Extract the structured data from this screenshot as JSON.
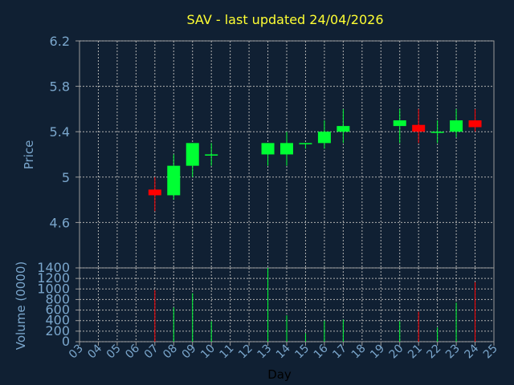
{
  "colors": {
    "background": "#102033",
    "text": "#7aa6cc",
    "title": "#ffff33",
    "up": "#00ff33",
    "down": "#ff0000",
    "grid": "#b0b0b0",
    "axis": "#9a9a9a",
    "xlabel": "#000000"
  },
  "chart_data": [
    {
      "type": "candlestick",
      "title": "SAV - last updated 24/04/2026",
      "ylabel": "Price",
      "ylim": [
        4.2,
        6.2
      ],
      "yticks": [
        "4.6",
        "5",
        "5.4",
        "5.8",
        "6.2"
      ],
      "candles": [
        {
          "day": "07",
          "open": 4.89,
          "close": 4.84,
          "high": 5.0,
          "low": 4.7
        },
        {
          "day": "08",
          "open": 4.84,
          "close": 5.1,
          "high": 5.2,
          "low": 4.8
        },
        {
          "day": "09",
          "open": 5.1,
          "close": 5.3,
          "high": 5.3,
          "low": 5.0
        },
        {
          "day": "10",
          "open": 5.19,
          "close": 5.2,
          "high": 5.3,
          "low": 5.1
        },
        {
          "day": "13",
          "open": 5.2,
          "close": 5.3,
          "high": 5.3,
          "low": 5.1
        },
        {
          "day": "14",
          "open": 5.2,
          "close": 5.3,
          "high": 5.4,
          "low": 5.1
        },
        {
          "day": "15",
          "open": 5.29,
          "close": 5.3,
          "high": 5.3,
          "low": 5.25
        },
        {
          "day": "16",
          "open": 5.3,
          "close": 5.4,
          "high": 5.5,
          "low": 5.25
        },
        {
          "day": "17",
          "open": 5.4,
          "close": 5.45,
          "high": 5.6,
          "low": 5.3
        },
        {
          "day": "20",
          "open": 5.45,
          "close": 5.5,
          "high": 5.6,
          "low": 5.3
        },
        {
          "day": "21",
          "open": 5.46,
          "close": 5.4,
          "high": 5.6,
          "low": 5.3
        },
        {
          "day": "22",
          "open": 5.39,
          "close": 5.4,
          "high": 5.5,
          "low": 5.3
        },
        {
          "day": "23",
          "open": 5.4,
          "close": 5.5,
          "high": 5.6,
          "low": 5.35
        },
        {
          "day": "24",
          "open": 5.5,
          "close": 5.44,
          "high": 5.6,
          "low": 5.4
        }
      ]
    },
    {
      "type": "bar",
      "ylabel": "Volume (0000)",
      "xlabel": "Day",
      "ylim": [
        0,
        1400
      ],
      "yticks": [
        "0",
        "200",
        "400",
        "600",
        "800",
        "1000",
        "1200",
        "1400"
      ],
      "categories": [
        "03",
        "04",
        "05",
        "06",
        "07",
        "08",
        "09",
        "10",
        "11",
        "12",
        "13",
        "14",
        "15",
        "16",
        "17",
        "18",
        "19",
        "20",
        "21",
        "22",
        "23",
        "24",
        "25"
      ],
      "volumes": [
        {
          "day": "07",
          "value": 980,
          "direction": "down"
        },
        {
          "day": "08",
          "value": 650,
          "direction": "up"
        },
        {
          "day": "09",
          "value": 920,
          "direction": "up"
        },
        {
          "day": "10",
          "value": 390,
          "direction": "up"
        },
        {
          "day": "13",
          "value": 1400,
          "direction": "up"
        },
        {
          "day": "14",
          "value": 500,
          "direction": "up"
        },
        {
          "day": "15",
          "value": 160,
          "direction": "up"
        },
        {
          "day": "16",
          "value": 400,
          "direction": "up"
        },
        {
          "day": "17",
          "value": 420,
          "direction": "up"
        },
        {
          "day": "20",
          "value": 390,
          "direction": "up"
        },
        {
          "day": "21",
          "value": 570,
          "direction": "down"
        },
        {
          "day": "22",
          "value": 270,
          "direction": "up"
        },
        {
          "day": "23",
          "value": 740,
          "direction": "up"
        },
        {
          "day": "24",
          "value": 1130,
          "direction": "down"
        }
      ]
    }
  ]
}
